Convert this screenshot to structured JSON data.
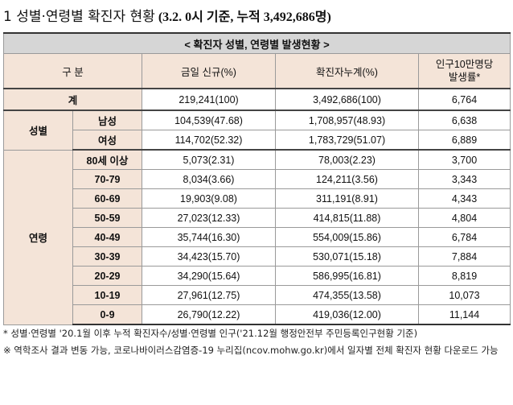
{
  "heading": {
    "title": "1  성별·연령별 확진자 현황",
    "subtitle": "(3.2. 0시 기준, 누적 3,492,686명)"
  },
  "table": {
    "caption": "< 확진자 성별, 연령별 발생현황 >",
    "columns": {
      "category": "구 분",
      "new": "금일 신규(%)",
      "cumulative": "확진자누계(%)",
      "rate_line1": "인구10만명당",
      "rate_line2": "발생률*"
    },
    "total": {
      "label": "계",
      "new": "219,241(100)",
      "cum": "3,492,686(100)",
      "rate": "6,764"
    },
    "sex_group": "성별",
    "sex": [
      {
        "label": "남성",
        "new": "104,539(47.68)",
        "cum": "1,708,957(48.93)",
        "rate": "6,638"
      },
      {
        "label": "여성",
        "new": "114,702(52.32)",
        "cum": "1,783,729(51.07)",
        "rate": "6,889"
      }
    ],
    "age_group": "연령",
    "age": [
      {
        "label": "80세 이상",
        "new": "5,073(2.31)",
        "cum": "78,003(2.23)",
        "rate": "3,700"
      },
      {
        "label": "70-79",
        "new": "8,034(3.66)",
        "cum": "124,211(3.56)",
        "rate": "3,343"
      },
      {
        "label": "60-69",
        "new": "19,903(9.08)",
        "cum": "311,191(8.91)",
        "rate": "4,343"
      },
      {
        "label": "50-59",
        "new": "27,023(12.33)",
        "cum": "414,815(11.88)",
        "rate": "4,804"
      },
      {
        "label": "40-49",
        "new": "35,744(16.30)",
        "cum": "554,009(15.86)",
        "rate": "6,784"
      },
      {
        "label": "30-39",
        "new": "34,423(15.70)",
        "cum": "530,071(15.18)",
        "rate": "7,884"
      },
      {
        "label": "20-29",
        "new": "34,290(15.64)",
        "cum": "586,995(16.81)",
        "rate": "8,819"
      },
      {
        "label": "10-19",
        "new": "27,961(12.75)",
        "cum": "474,355(13.58)",
        "rate": "10,073"
      },
      {
        "label": "0-9",
        "new": "26,790(12.22)",
        "cum": "419,036(12.00)",
        "rate": "11,144"
      }
    ]
  },
  "notes": [
    "* 성별·연령별 '20.1월 이후 누적 확진자수/성별·연령별 인구('21.12월 행정안전부 주민등록인구현황 기준)",
    "※ 역학조사 결과 변동 가능, 코로나바이러스감염증-19 누리집(ncov.mohw.go.kr)에서 일자별 전체 확진자 현황 다운로드 가능"
  ]
}
